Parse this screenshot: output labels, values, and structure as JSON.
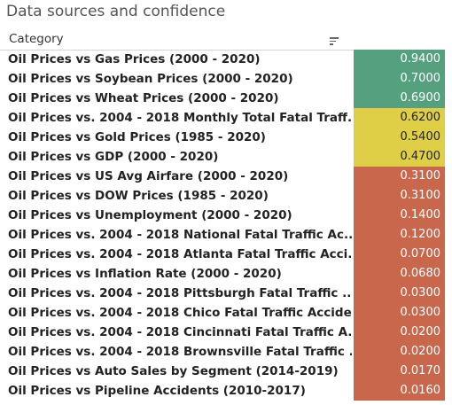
{
  "header": {
    "title": "Data sources and confidence",
    "column_label": "Category",
    "sort_icon": "sort-descending-icon"
  },
  "colors": {
    "high": "#55a07f",
    "medium": "#dfcf47",
    "low": "#c9674d"
  },
  "chart_data": {
    "type": "table",
    "title": "Data sources and confidence",
    "columns": [
      "Category",
      ""
    ],
    "rows": [
      {
        "category": "Oil Prices vs Gas Prices (2000 - 2020)",
        "value": "0.9400",
        "level": "high"
      },
      {
        "category": "Oil Prices vs Soybean Prices (2000 - 2020)",
        "value": "0.7000",
        "level": "high"
      },
      {
        "category": "Oil Prices vs Wheat Prices (2000 - 2020)",
        "value": "0.6900",
        "level": "high"
      },
      {
        "category": "Oil Prices vs. 2004 - 2018 Monthly Total Fatal Traff..",
        "value": "0.6200",
        "level": "medium"
      },
      {
        "category": "Oil Prices vs Gold Prices (1985 - 2020)",
        "value": "0.5400",
        "level": "medium"
      },
      {
        "category": "Oil Prices vs GDP (2000 - 2020)",
        "value": "0.4700",
        "level": "medium"
      },
      {
        "category": "Oil Prices vs US Avg Airfare (2000 - 2020)",
        "value": "0.3100",
        "level": "low"
      },
      {
        "category": "Oil Prices vs DOW Prices (1985 - 2020)",
        "value": "0.3100",
        "level": "low"
      },
      {
        "category": "Oil Prices vs Unemployment (2000 - 2020)",
        "value": "0.1400",
        "level": "low"
      },
      {
        "category": "Oil Prices vs. 2004 - 2018 National Fatal Traffic Ac..",
        "value": "0.1200",
        "level": "low"
      },
      {
        "category": "Oil Prices vs. 2004 - 2018 Atlanta Fatal Traffic Acci..",
        "value": "0.0700",
        "level": "low"
      },
      {
        "category": "Oil Prices vs Inflation Rate (2000 - 2020)",
        "value": "0.0680",
        "level": "low"
      },
      {
        "category": "Oil Prices vs. 2004 - 2018 Pittsburgh Fatal Traffic ..",
        "value": "0.0300",
        "level": "low"
      },
      {
        "category": "Oil Prices vs. 2004 - 2018 Chico Fatal Traffic Accide..",
        "value": "0.0300",
        "level": "low"
      },
      {
        "category": "Oil Prices vs. 2004 - 2018 Cincinnati Fatal Traffic A..",
        "value": "0.0200",
        "level": "low"
      },
      {
        "category": "Oil Prices vs. 2004 - 2018 Brownsville Fatal Traffic ..",
        "value": "0.0200",
        "level": "low"
      },
      {
        "category": "Oil Prices vs Auto Sales by Segment (2014-2019)",
        "value": "0.0170",
        "level": "low"
      },
      {
        "category": "Oil Prices vs Pipeline Accidents (2010-2017)",
        "value": "0.0160",
        "level": "low"
      }
    ]
  }
}
